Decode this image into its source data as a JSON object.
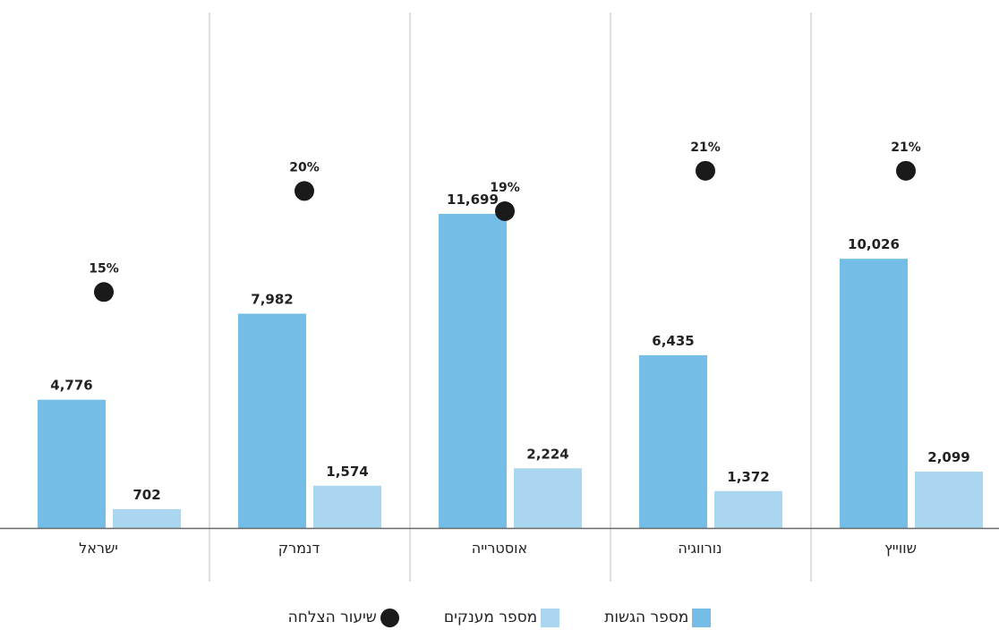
{
  "colors": {
    "submissions": "#74bde6",
    "grantees": "#aad6f0",
    "success": "#1a1a1a",
    "divider": "#bdbdbd",
    "axis": "#6a6a6a",
    "text": "#222222"
  },
  "chart_data": {
    "type": "bar",
    "title": "",
    "xlabel": "",
    "ylabel": "",
    "categories": [
      "ישראל",
      "דנמרק",
      "אוסטרייה",
      "נורווגיה",
      "שווייץ"
    ],
    "series": [
      {
        "name": "מספר הגשות",
        "values": [
          4776,
          7982,
          11699,
          6435,
          10026
        ],
        "labels": [
          "4,776",
          "7,982",
          "11,699",
          "6,435",
          "10,026"
        ]
      },
      {
        "name": "מספר מענקים",
        "values": [
          702,
          1574,
          2224,
          1372,
          2099
        ],
        "labels": [
          "702",
          "1,574",
          "2,224",
          "1,372",
          "2,099"
        ]
      },
      {
        "name": "שיעור הצלחה",
        "values": [
          15,
          20,
          19,
          21,
          21
        ],
        "labels": [
          "15%",
          "20%",
          "19%",
          "21%",
          "21%"
        ],
        "unit": "%"
      }
    ],
    "ylim_counts": [
      0,
      15000
    ],
    "ylim_percent": [
      0,
      23
    ],
    "grid": false,
    "legend": "bottom-center"
  }
}
